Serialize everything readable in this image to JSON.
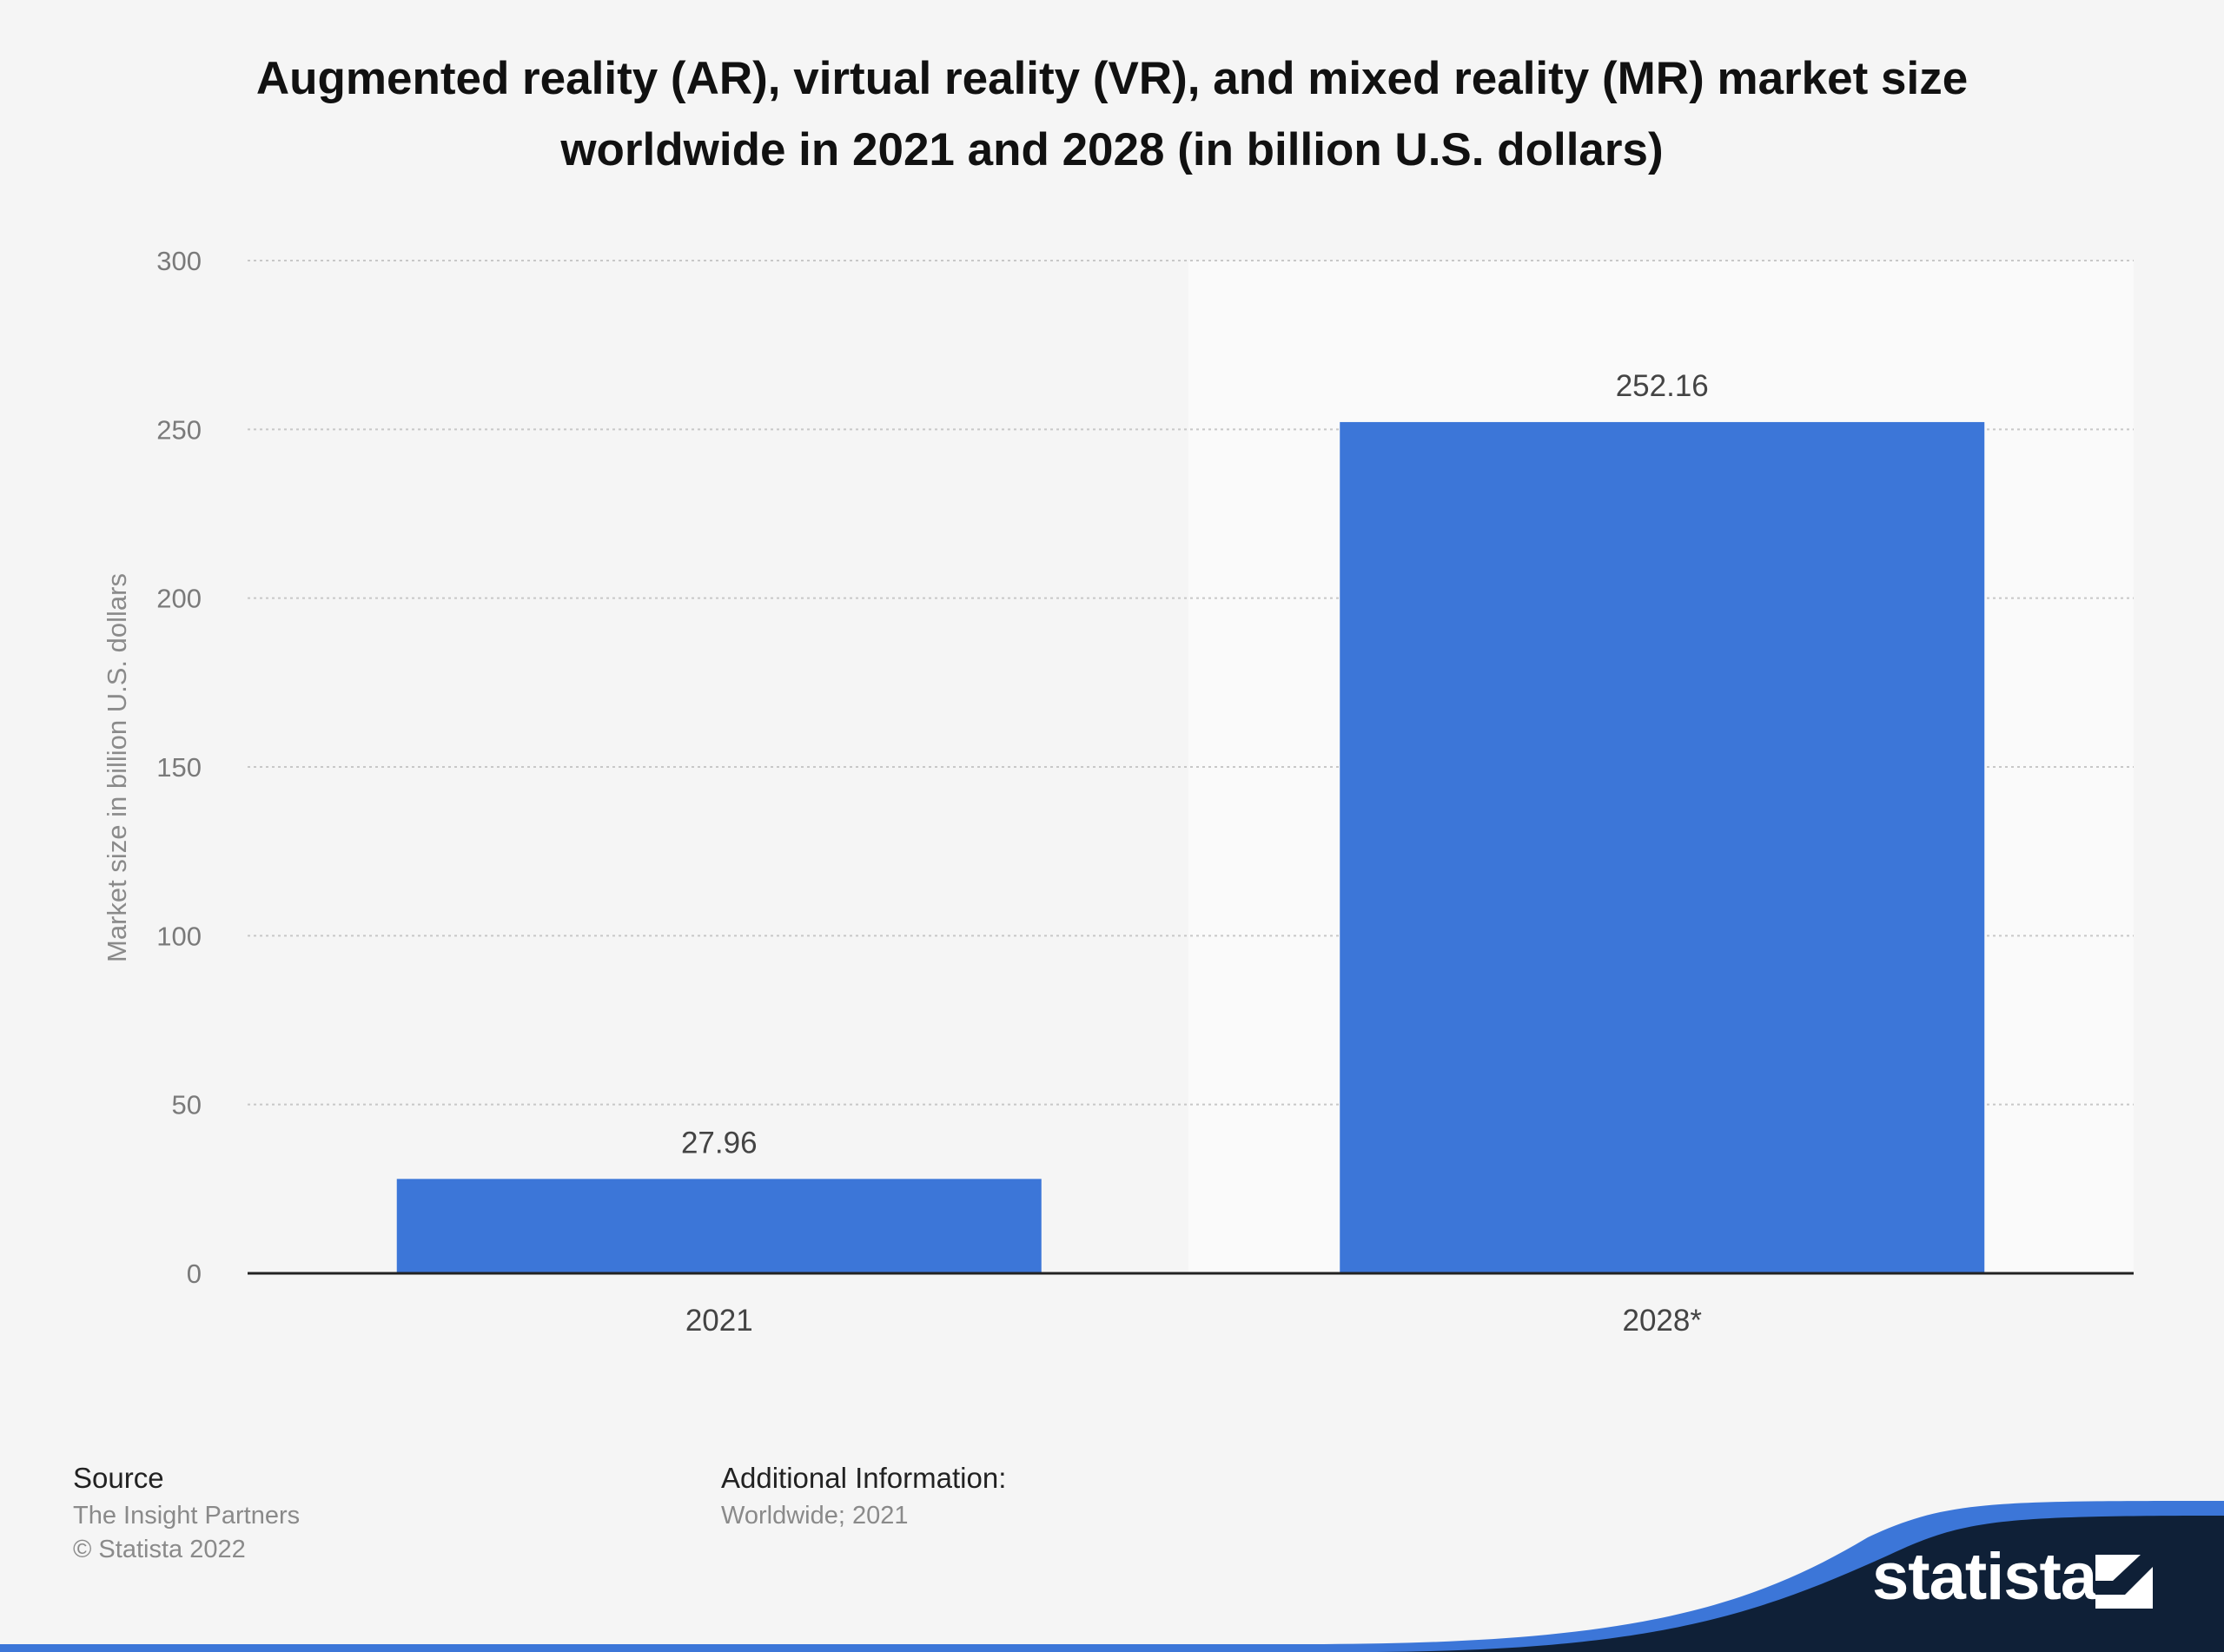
{
  "chart_data": {
    "type": "bar",
    "title": "Augmented reality (AR), virtual reality (VR), and mixed reality (MR) market size worldwide in 2021 and 2028 (in billion U.S. dollars)",
    "xlabel": "",
    "ylabel": "Market size in billion U.S. dollars",
    "categories": [
      "2021",
      "2028*"
    ],
    "values": [
      27.96,
      252.16
    ],
    "value_labels": [
      "27.96",
      "252.16"
    ],
    "yticks": [
      "0",
      "50",
      "100",
      "150",
      "200",
      "250",
      "300"
    ],
    "ylim": [
      0,
      300
    ],
    "grid": true,
    "legend": "none",
    "highlighted_category": "2028*"
  },
  "colors": {
    "bar": "#3c76d8",
    "forecast_band": "#fafafa",
    "brand_dark": "#0f2037",
    "brand_blue": "#3c76d8"
  },
  "footer": {
    "source_heading": "Source",
    "source_name": "The Insight Partners",
    "copyright": "© Statista 2022",
    "additional_heading": "Additional Information:",
    "additional_text": "Worldwide; 2021"
  },
  "brand": {
    "name": "statista",
    "icon": "statista-logo-icon"
  }
}
